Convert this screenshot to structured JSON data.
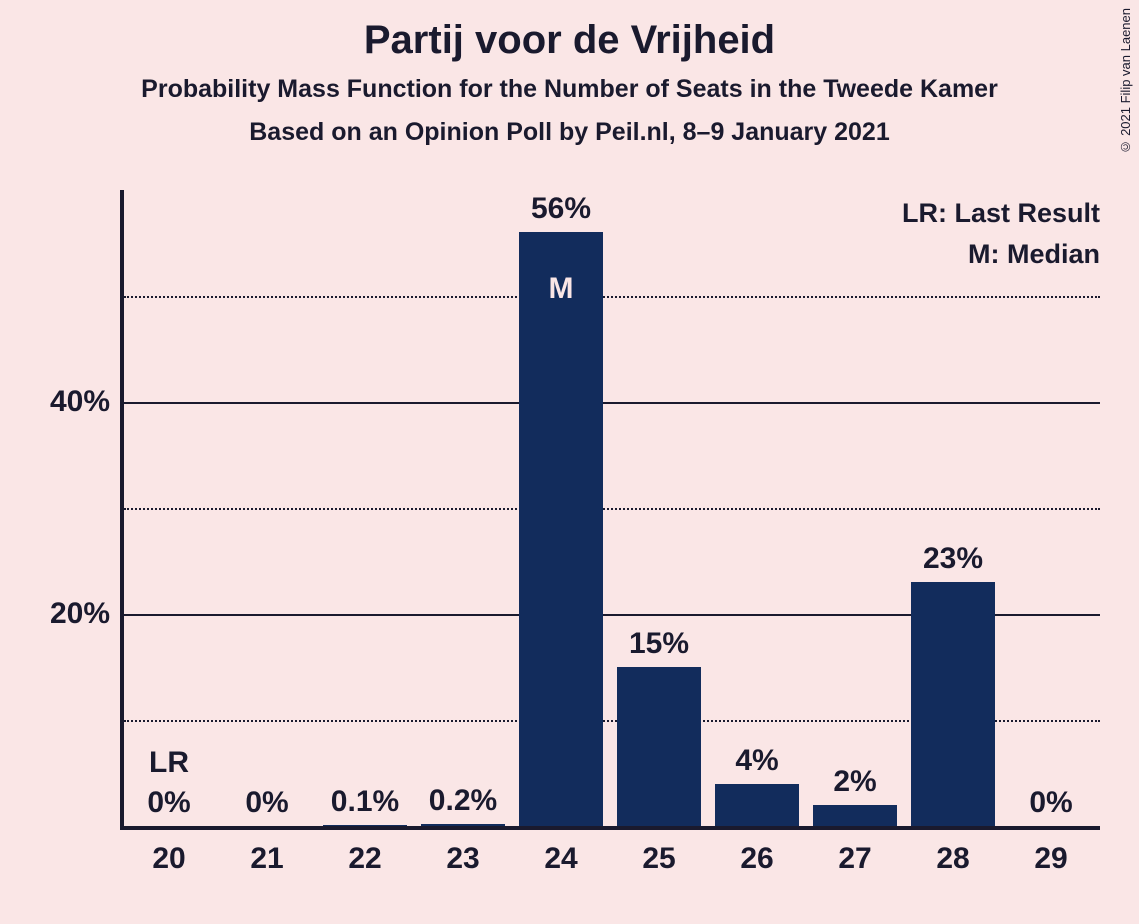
{
  "title": "Partij voor de Vrijheid",
  "subtitle": "Probability Mass Function for the Number of Seats in the Tweede Kamer",
  "subtitle2": "Based on an Opinion Poll by Peil.nl, 8–9 January 2021",
  "copyright": "© 2021 Filip van Laenen",
  "legend": {
    "lr": "LR: Last Result",
    "m": "M: Median"
  },
  "chart": {
    "type": "bar",
    "background_color": "#fae6e6",
    "bar_color": "#122c5c",
    "axis_color": "#1a1a2e",
    "text_color": "#1a1a2e",
    "median_text_color": "#fae6e6",
    "ylim_max": 60,
    "ytick_major": [
      20,
      40
    ],
    "ytick_minor": [
      10,
      30,
      50
    ],
    "bar_width_ratio": 0.85,
    "categories": [
      20,
      21,
      22,
      23,
      24,
      25,
      26,
      27,
      28,
      29
    ],
    "values": [
      0,
      0,
      0.1,
      0.2,
      56,
      15,
      4,
      2,
      23,
      0
    ],
    "value_labels": [
      "0%",
      "0%",
      "0.1%",
      "0.2%",
      "56%",
      "15%",
      "4%",
      "2%",
      "23%",
      "0%"
    ],
    "lr_index": 0,
    "lr_text": "LR",
    "median_index": 4,
    "median_text": "M"
  }
}
